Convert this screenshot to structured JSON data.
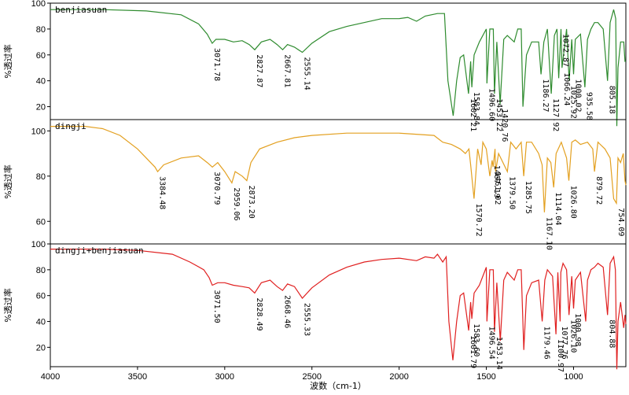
{
  "chart_data": {
    "type": "line",
    "xlabel": "波数（cm-1）",
    "xlim": [
      4000,
      700
    ],
    "x_ticks": [
      "4000",
      "3500",
      "3000",
      "2500",
      "2000",
      "1500",
      "1000"
    ],
    "panels": [
      {
        "name": "benjiasuan",
        "ylabel": "%透过率",
        "ylim": [
          10,
          100
        ],
        "y_ticks": [
          "20",
          "40",
          "60",
          "80",
          "100"
        ],
        "color": "#2e8b2e",
        "points": [
          [
            4000,
            95
          ],
          [
            3700,
            95
          ],
          [
            3450,
            94
          ],
          [
            3250,
            91
          ],
          [
            3150,
            84
          ],
          [
            3100,
            76
          ],
          [
            3071.78,
            69
          ],
          [
            3050,
            72
          ],
          [
            3000,
            72
          ],
          [
            2950,
            70
          ],
          [
            2900,
            71
          ],
          [
            2860,
            68
          ],
          [
            2827.87,
            64
          ],
          [
            2790,
            70
          ],
          [
            2740,
            72
          ],
          [
            2700,
            68
          ],
          [
            2667.81,
            64
          ],
          [
            2640,
            68
          ],
          [
            2600,
            66
          ],
          [
            2555.14,
            62
          ],
          [
            2500,
            69
          ],
          [
            2400,
            78
          ],
          [
            2300,
            82
          ],
          [
            2100,
            88
          ],
          [
            2000,
            88
          ],
          [
            1950,
            89
          ],
          [
            1900,
            86
          ],
          [
            1850,
            90
          ],
          [
            1780,
            92
          ],
          [
            1740,
            92
          ],
          [
            1720,
            40
          ],
          [
            1690,
            13
          ],
          [
            1670,
            40
          ],
          [
            1650,
            58
          ],
          [
            1630,
            60
          ],
          [
            1602,
            30
          ],
          [
            1590,
            55
          ],
          [
            1583,
            35
          ],
          [
            1570,
            60
          ],
          [
            1540,
            70
          ],
          [
            1500,
            80
          ],
          [
            1496.6,
            38
          ],
          [
            1480,
            80
          ],
          [
            1460,
            80
          ],
          [
            1453.22,
            30
          ],
          [
            1440,
            70
          ],
          [
            1420.76,
            22
          ],
          [
            1400,
            72
          ],
          [
            1380,
            75
          ],
          [
            1340,
            70
          ],
          [
            1320,
            80
          ],
          [
            1300,
            80
          ],
          [
            1290,
            20
          ],
          [
            1270,
            60
          ],
          [
            1240,
            70
          ],
          [
            1200,
            70
          ],
          [
            1186.27,
            45
          ],
          [
            1170,
            70
          ],
          [
            1150,
            80
          ],
          [
            1127.92,
            30
          ],
          [
            1110,
            75
          ],
          [
            1095,
            80
          ],
          [
            1085,
            42
          ],
          [
            1072,
            80
          ],
          [
            1066,
            50
          ],
          [
            1040,
            80
          ],
          [
            1025,
            40
          ],
          [
            1010,
            72
          ],
          [
            1000,
            45
          ],
          [
            990,
            72
          ],
          [
            960,
            76
          ],
          [
            935,
            35
          ],
          [
            920,
            72
          ],
          [
            900,
            80
          ],
          [
            880,
            85
          ],
          [
            860,
            85
          ],
          [
            830,
            80
          ],
          [
            805.18,
            40
          ],
          [
            790,
            85
          ],
          [
            770,
            95
          ],
          [
            758,
            88
          ],
          [
            752,
            5
          ],
          [
            745,
            50
          ],
          [
            730,
            70
          ],
          [
            712,
            70
          ],
          [
            705,
            55
          ],
          [
            700,
            55
          ]
        ],
        "peaks": [
          "3071.78",
          "2827.87",
          "2667.81",
          "2555.14",
          "1602.21",
          "1583.84",
          "1496.60",
          "1453.22",
          "1420.76",
          "1186.27",
          "1127.92",
          "1072.87",
          "1066.24",
          "1025.92",
          "1000.02",
          "935.58",
          "805.18"
        ]
      },
      {
        "name": "dingji",
        "ylabel": "%透过率",
        "ylim": [
          50,
          105
        ],
        "y_ticks": [
          "60",
          "80",
          "100"
        ],
        "color": "#e3a020",
        "points": [
          [
            4000,
            102
          ],
          [
            3800,
            102
          ],
          [
            3700,
            101
          ],
          [
            3600,
            98
          ],
          [
            3500,
            92
          ],
          [
            3400,
            84
          ],
          [
            3384.48,
            82
          ],
          [
            3350,
            85
          ],
          [
            3250,
            88
          ],
          [
            3150,
            89
          ],
          [
            3100,
            86
          ],
          [
            3070.79,
            84
          ],
          [
            3040,
            86
          ],
          [
            3000,
            82
          ],
          [
            2959.06,
            77
          ],
          [
            2940,
            82
          ],
          [
            2900,
            80
          ],
          [
            2873.2,
            78
          ],
          [
            2850,
            86
          ],
          [
            2800,
            92
          ],
          [
            2700,
            95
          ],
          [
            2600,
            97
          ],
          [
            2500,
            98
          ],
          [
            2300,
            99
          ],
          [
            2000,
            99
          ],
          [
            1800,
            98
          ],
          [
            1750,
            95
          ],
          [
            1700,
            94
          ],
          [
            1650,
            92
          ],
          [
            1620,
            90
          ],
          [
            1600,
            92
          ],
          [
            1590,
            85
          ],
          [
            1570.72,
            70
          ],
          [
            1550,
            92
          ],
          [
            1530,
            85
          ],
          [
            1520,
            95
          ],
          [
            1500,
            92
          ],
          [
            1480,
            80
          ],
          [
            1467,
            87
          ],
          [
            1461,
            84
          ],
          [
            1450,
            92
          ],
          [
            1447,
            82
          ],
          [
            1430,
            90
          ],
          [
            1379.5,
            82
          ],
          [
            1360,
            95
          ],
          [
            1330,
            92
          ],
          [
            1300,
            95
          ],
          [
            1285.75,
            80
          ],
          [
            1270,
            95
          ],
          [
            1240,
            95
          ],
          [
            1200,
            90
          ],
          [
            1180,
            85
          ],
          [
            1167.1,
            64
          ],
          [
            1150,
            88
          ],
          [
            1130,
            86
          ],
          [
            1114.04,
            75
          ],
          [
            1100,
            90
          ],
          [
            1070,
            95
          ],
          [
            1040,
            88
          ],
          [
            1026.8,
            78
          ],
          [
            1010,
            95
          ],
          [
            990,
            96
          ],
          [
            960,
            94
          ],
          [
            920,
            95
          ],
          [
            890,
            92
          ],
          [
            879.72,
            82
          ],
          [
            860,
            95
          ],
          [
            820,
            92
          ],
          [
            790,
            88
          ],
          [
            770,
            70
          ],
          [
            754.09,
            68
          ],
          [
            745,
            88
          ],
          [
            730,
            86
          ],
          [
            715,
            90
          ],
          [
            705,
            78
          ],
          [
            700,
            76
          ]
        ],
        "peaks": [
          "3384.48",
          "3070.79",
          "2959.06",
          "2873.20",
          "1570.72",
          "1467.19",
          "1461.02",
          "1379.50",
          "1285.75",
          "1167.10",
          "1114.04",
          "1026.80",
          "879.72",
          "754.09"
        ]
      },
      {
        "name": "dingji+benjiasuan",
        "ylabel": "%透过率",
        "ylim": [
          5,
          100
        ],
        "y_ticks": [
          "20",
          "40",
          "60",
          "80",
          "100"
        ],
        "color": "#e02020",
        "points": [
          [
            4000,
            96
          ],
          [
            3700,
            96
          ],
          [
            3500,
            95
          ],
          [
            3300,
            92
          ],
          [
            3200,
            86
          ],
          [
            3120,
            80
          ],
          [
            3090,
            74
          ],
          [
            3071.5,
            68
          ],
          [
            3040,
            70
          ],
          [
            3000,
            70
          ],
          [
            2950,
            68
          ],
          [
            2900,
            67
          ],
          [
            2860,
            66
          ],
          [
            2828.49,
            62
          ],
          [
            2790,
            70
          ],
          [
            2740,
            72
          ],
          [
            2700,
            67
          ],
          [
            2668.46,
            64
          ],
          [
            2640,
            69
          ],
          [
            2600,
            67
          ],
          [
            2555.33,
            58
          ],
          [
            2500,
            66
          ],
          [
            2400,
            76
          ],
          [
            2300,
            82
          ],
          [
            2200,
            86
          ],
          [
            2100,
            88
          ],
          [
            2000,
            89
          ],
          [
            1900,
            87
          ],
          [
            1850,
            90
          ],
          [
            1800,
            89
          ],
          [
            1780,
            92
          ],
          [
            1750,
            86
          ],
          [
            1730,
            90
          ],
          [
            1715,
            40
          ],
          [
            1692,
            10
          ],
          [
            1670,
            40
          ],
          [
            1650,
            60
          ],
          [
            1630,
            62
          ],
          [
            1601,
            33
          ],
          [
            1590,
            55
          ],
          [
            1583,
            42
          ],
          [
            1570,
            62
          ],
          [
            1540,
            68
          ],
          [
            1500,
            82
          ],
          [
            1496.54,
            40
          ],
          [
            1480,
            80
          ],
          [
            1460,
            80
          ],
          [
            1453.14,
            32
          ],
          [
            1440,
            70
          ],
          [
            1420,
            25
          ],
          [
            1400,
            72
          ],
          [
            1380,
            78
          ],
          [
            1340,
            72
          ],
          [
            1320,
            80
          ],
          [
            1300,
            80
          ],
          [
            1285,
            18
          ],
          [
            1270,
            60
          ],
          [
            1240,
            70
          ],
          [
            1200,
            72
          ],
          [
            1179.46,
            40
          ],
          [
            1165,
            72
          ],
          [
            1150,
            80
          ],
          [
            1120,
            75
          ],
          [
            1100.97,
            30
          ],
          [
            1090,
            78
          ],
          [
            1077,
            40
          ],
          [
            1072.76,
            78
          ],
          [
            1060,
            85
          ],
          [
            1040,
            80
          ],
          [
            1026.1,
            45
          ],
          [
            1010,
            75
          ],
          [
            1000,
            50
          ],
          [
            990,
            72
          ],
          [
            960,
            78
          ],
          [
            930,
            40
          ],
          [
            920,
            72
          ],
          [
            900,
            80
          ],
          [
            880,
            82
          ],
          [
            860,
            85
          ],
          [
            830,
            82
          ],
          [
            804.88,
            45
          ],
          [
            790,
            85
          ],
          [
            770,
            90
          ],
          [
            760,
            80
          ],
          [
            752,
            3
          ],
          [
            745,
            40
          ],
          [
            730,
            55
          ],
          [
            712,
            35
          ],
          [
            705,
            45
          ],
          [
            700,
            38
          ]
        ],
        "peaks": [
          "3071.50",
          "2828.49",
          "2668.46",
          "2555.33",
          "1601.79",
          "1583.60",
          "1496.54",
          "1453.14",
          "1179.46",
          "1100.97",
          "1077.76",
          "1026.10",
          "1000.98",
          "804.88"
        ]
      }
    ]
  }
}
